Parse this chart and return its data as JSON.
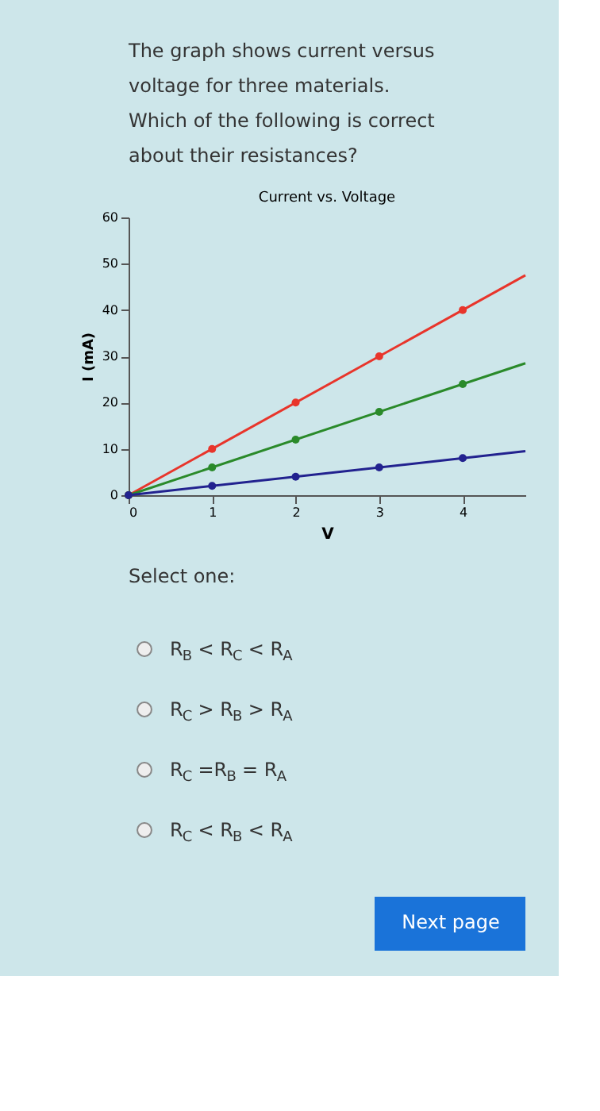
{
  "chart_data": {
    "type": "line",
    "title": "Current vs. Voltage",
    "xlabel": "V",
    "ylabel": "I (mA)",
    "xlim": [
      0,
      4.75
    ],
    "xticks": [
      0,
      1,
      2,
      3,
      4
    ],
    "ylim": [
      0,
      60
    ],
    "yticks": [
      0,
      10,
      20,
      30,
      40,
      50,
      60
    ],
    "grid": false,
    "legend": false,
    "marker": "circle",
    "line_style": "solid",
    "series": [
      {
        "type": "line",
        "color": "#e8352b",
        "marker": "none",
        "x": [
          0,
          4.75
        ],
        "values": [
          0,
          47.5
        ]
      },
      {
        "type": "line",
        "color": "#2a8a2a",
        "marker": "none",
        "x": [
          0,
          4.75
        ],
        "values": [
          0,
          28.5
        ]
      },
      {
        "type": "line",
        "color": "#22228f",
        "marker": "none",
        "x": [
          0,
          4.75
        ],
        "values": [
          0,
          9.5
        ]
      },
      {
        "type": "scatter",
        "color": "#e8352b",
        "x": [
          0,
          1,
          2,
          3,
          4
        ],
        "values": [
          0,
          10,
          20,
          30,
          40
        ]
      },
      {
        "type": "scatter",
        "color": "#2a8a2a",
        "x": [
          0,
          1,
          2,
          3,
          4
        ],
        "values": [
          0,
          6,
          12,
          18,
          24
        ]
      },
      {
        "type": "scatter",
        "color": "#22228f",
        "x": [
          0,
          1,
          2,
          3,
          4
        ],
        "values": [
          0,
          2,
          4,
          6,
          8
        ]
      }
    ],
    "annotations": [
      "The graph shows current versus voltage for three materials. Which of the following is correct about their resistances?",
      "Select one:",
      "R$_{B}$ < R$_{C}$ < R$_{A}$",
      "R$_{C}$ > R$_{B}$ > R$_{A}$",
      "R$_{C}$ =R$_{B}$ = R$_{A}$",
      "R$_{C}$ < R$_{B}$ < R$_{A}$",
      "Next page"
    ]
  }
}
